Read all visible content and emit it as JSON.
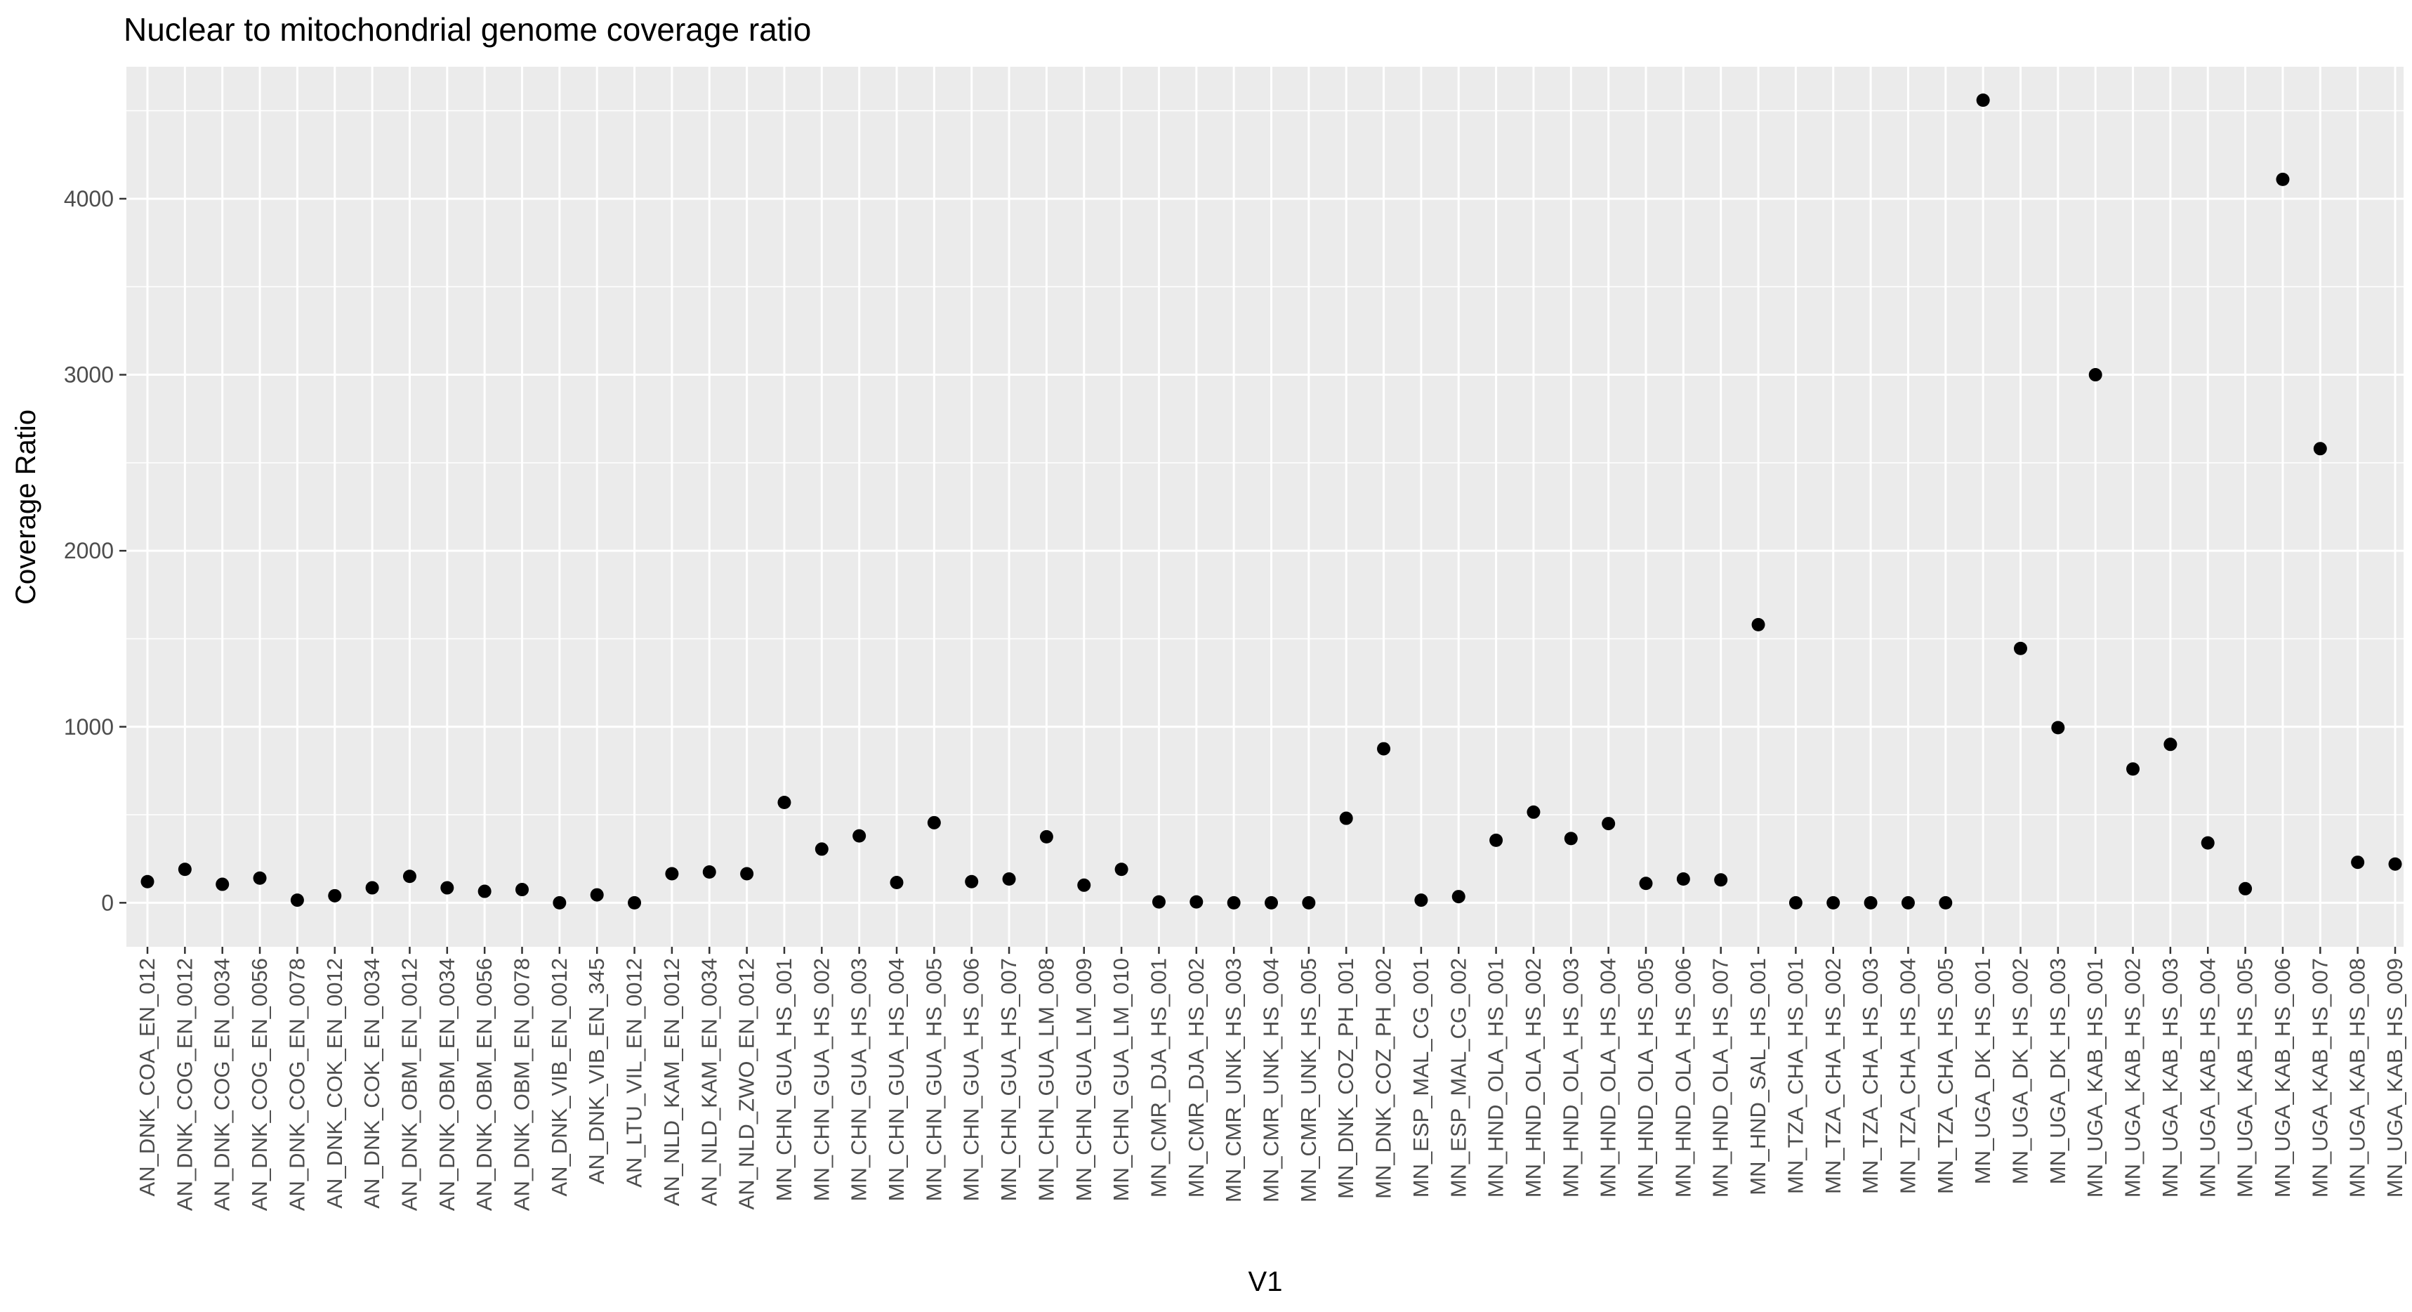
{
  "chart_data": {
    "type": "scatter",
    "title": "Nuclear to mitochondrial genome coverage ratio",
    "xlabel": "V1",
    "ylabel": "Coverage Ratio",
    "ylim": [
      -250,
      4750
    ],
    "yticks": [
      0,
      1000,
      2000,
      3000,
      4000
    ],
    "grid": true,
    "point_color": "#000000",
    "panel_background": "#ebebeb",
    "grid_color": "#ffffff",
    "categories": [
      "AN_DNK_COA_EN_012",
      "AN_DNK_COG_EN_0012",
      "AN_DNK_COG_EN_0034",
      "AN_DNK_COG_EN_0056",
      "AN_DNK_COG_EN_0078",
      "AN_DNK_COK_EN_0012",
      "AN_DNK_COK_EN_0034",
      "AN_DNK_OBM_EN_0012",
      "AN_DNK_OBM_EN_0034",
      "AN_DNK_OBM_EN_0056",
      "AN_DNK_OBM_EN_0078",
      "AN_DNK_VIB_EN_0012",
      "AN_DNK_VIB_EN_345",
      "AN_LTU_VIL_EN_0012",
      "AN_NLD_KAM_EN_0012",
      "AN_NLD_KAM_EN_0034",
      "AN_NLD_ZWO_EN_0012",
      "MN_CHN_GUA_HS_001",
      "MN_CHN_GUA_HS_002",
      "MN_CHN_GUA_HS_003",
      "MN_CHN_GUA_HS_004",
      "MN_CHN_GUA_HS_005",
      "MN_CHN_GUA_HS_006",
      "MN_CHN_GUA_HS_007",
      "MN_CHN_GUA_LM_008",
      "MN_CHN_GUA_LM_009",
      "MN_CHN_GUA_LM_010",
      "MN_CMR_DJA_HS_001",
      "MN_CMR_DJA_HS_002",
      "MN_CMR_UNK_HS_003",
      "MN_CMR_UNK_HS_004",
      "MN_CMR_UNK_HS_005",
      "MN_DNK_COZ_PH_001",
      "MN_DNK_COZ_PH_002",
      "MN_ESP_MAL_CG_001",
      "MN_ESP_MAL_CG_002",
      "MN_HND_OLA_HS_001",
      "MN_HND_OLA_HS_002",
      "MN_HND_OLA_HS_003",
      "MN_HND_OLA_HS_004",
      "MN_HND_OLA_HS_005",
      "MN_HND_OLA_HS_006",
      "MN_HND_OLA_HS_007",
      "MN_HND_SAL_HS_001",
      "MN_TZA_CHA_HS_001",
      "MN_TZA_CHA_HS_002",
      "MN_TZA_CHA_HS_003",
      "MN_TZA_CHA_HS_004",
      "MN_TZA_CHA_HS_005",
      "MN_UGA_DK_HS_001",
      "MN_UGA_DK_HS_002",
      "MN_UGA_DK_HS_003",
      "MN_UGA_KAB_HS_001",
      "MN_UGA_KAB_HS_002",
      "MN_UGA_KAB_HS_003",
      "MN_UGA_KAB_HS_004",
      "MN_UGA_KAB_HS_005",
      "MN_UGA_KAB_HS_006",
      "MN_UGA_KAB_HS_007",
      "MN_UGA_KAB_HS_008",
      "MN_UGA_KAB_HS_009"
    ],
    "values": [
      120,
      190,
      105,
      140,
      15,
      40,
      85,
      150,
      85,
      65,
      75,
      0,
      45,
      0,
      165,
      175,
      165,
      570,
      305,
      380,
      115,
      455,
      120,
      135,
      375,
      100,
      190,
      5,
      5,
      0,
      0,
      0,
      480,
      875,
      15,
      35,
      355,
      515,
      365,
      450,
      110,
      135,
      130,
      1580,
      0,
      0,
      0,
      0,
      0,
      4560,
      1445,
      995,
      3000,
      760,
      900,
      340,
      80,
      4110,
      2580,
      230,
      220
    ]
  }
}
